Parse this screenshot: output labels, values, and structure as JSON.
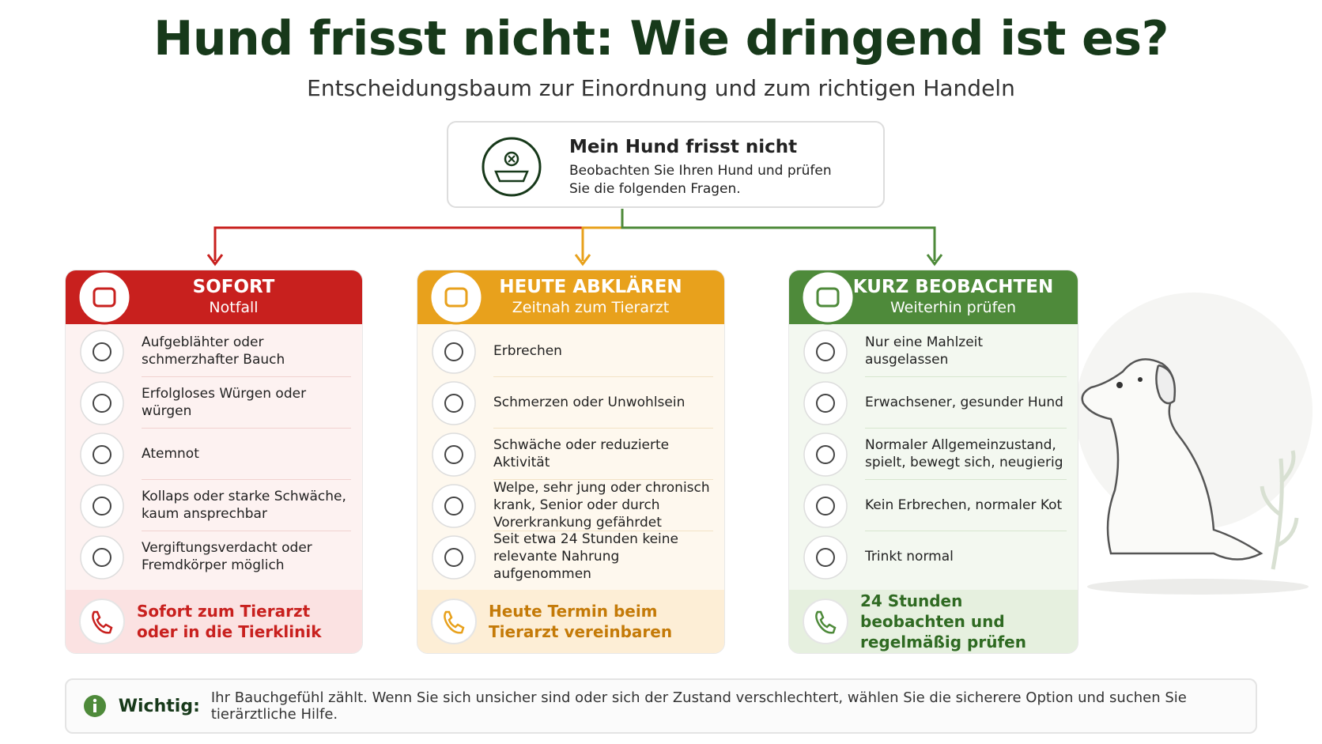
{
  "header": {
    "title": "Hund frisst nicht: Wie dringend ist es?",
    "subtitle": "Entscheidungsbaum zur Einordnung und zum richtigen Handeln"
  },
  "start": {
    "title": "Mein Hund frisst nicht",
    "text": "Beobachten Sie Ihren Hund und prüfen Sie die folgenden Fragen."
  },
  "columns": [
    {
      "title": "SOFORT",
      "subtitle": "Notfall",
      "items": [
        "Aufgeblähter oder schmerzhafter Bauch",
        "Erfolgloses Würgen oder würgen",
        "Atemnot",
        "Kollaps oder starke Schwäche, kaum ansprechbar",
        "Vergiftungsverdacht oder Fremdkörper möglich"
      ],
      "action": "Sofort zum Tierarzt oder in die Tierklinik"
    },
    {
      "title": "HEUTE ABKLÄREN",
      "subtitle": "Zeitnah zum Tierarzt",
      "items": [
        "Erbrechen",
        "Schmerzen oder Unwohlsein",
        "Schwäche oder reduzierte Aktivität",
        "Welpe, sehr jung oder chronisch krank, Senior oder durch Vorerkrankung gefährdet",
        "Seit etwa 24 Stunden keine relevante Nahrung aufgenommen"
      ],
      "action": "Heute Termin beim Tierarzt vereinbaren"
    },
    {
      "title": "KURZ BEOBACHTEN",
      "subtitle": "Weiterhin prüfen",
      "items": [
        "Nur eine Mahlzeit ausgelassen",
        "Erwachsener, gesunder Hund",
        "Normaler Allgemeinzustand, spielt, bewegt sich, neugierig",
        "Kein Erbrechen, normaler Kot",
        "Trinkt normal"
      ],
      "action": "24 Stunden beobachten und regelmäßig prüfen"
    }
  ],
  "note": {
    "label": "Wichtig:",
    "text": "Ihr Bauchgefühl zählt. Wenn Sie sich unsicher sind oder sich der Zustand verschlechtert, wählen Sie die sicherere Option und suchen Sie tierärztliche Hilfe."
  }
}
